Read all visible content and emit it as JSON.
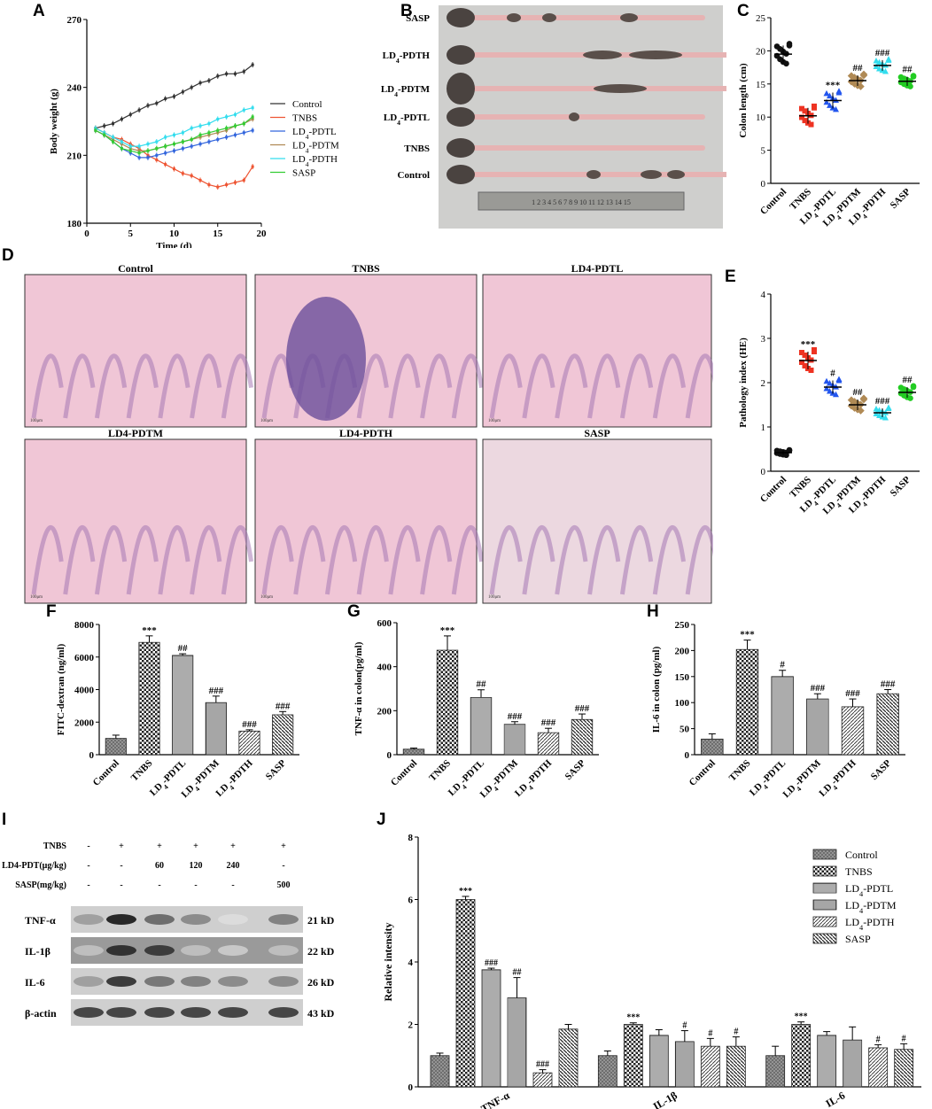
{
  "panels": {
    "A": "A",
    "B": "B",
    "C": "C",
    "D": "D",
    "E": "E",
    "F": "F",
    "G": "G",
    "H": "H",
    "I": "I",
    "J": "J"
  },
  "colors": {
    "Control": "#333333",
    "TNBS": "#ee5533",
    "LD4-PDTL": "#3366dd",
    "LD4-PDTM": "#b08a55",
    "LD4-PDTH": "#33ddee",
    "SASP": "#33cc33"
  },
  "photo": {
    "labels": [
      "SASP",
      "LD4-PDTH",
      "LD4-PDTM",
      "LD4-PDTL",
      "TNBS",
      "Control"
    ],
    "ruler": "1 2 3 4 5 6 7 8 9 10 11 12 13 14 15"
  },
  "histology": {
    "titles": [
      "Control",
      "TNBS",
      "LD4-PDTL",
      "LD4-PDTM",
      "LD4-PDTH",
      "SASP"
    ],
    "scale": "100μm"
  },
  "western": {
    "rows": [
      {
        "label": "TNBS",
        "vals": [
          "-",
          "+",
          "+",
          "+",
          "+",
          "+"
        ]
      },
      {
        "label": "LD4-PDT(μg/kg)",
        "vals": [
          "-",
          "-",
          "60",
          "120",
          "240",
          "-"
        ]
      },
      {
        "label": "SASP(mg/kg)",
        "vals": [
          "-",
          "-",
          "-",
          "-",
          "-",
          "500"
        ]
      }
    ],
    "bands": [
      {
        "name": "TNF-α",
        "kd": "21 kD",
        "intensity": [
          0.35,
          0.95,
          0.6,
          0.45,
          0.05,
          0.5
        ]
      },
      {
        "name": "IL-1β",
        "kd": "22 kD",
        "intensity": [
          0.2,
          0.9,
          0.85,
          0.2,
          0.15,
          0.2
        ]
      },
      {
        "name": "IL-6",
        "kd": "26 kD",
        "intensity": [
          0.35,
          0.85,
          0.55,
          0.5,
          0.45,
          0.45
        ]
      },
      {
        "name": "β-actin",
        "kd": "43 kD",
        "intensity": [
          0.8,
          0.8,
          0.8,
          0.8,
          0.8,
          0.8
        ]
      }
    ]
  },
  "chart_data": [
    {
      "panel": "A",
      "type": "line",
      "xlabel": "Time (d)",
      "ylabel": "Body weight (g)",
      "xlim": [
        0,
        20
      ],
      "ylim": [
        180,
        270
      ],
      "xticks": [
        0,
        5,
        10,
        15,
        20
      ],
      "yticks": [
        180,
        210,
        240,
        270
      ],
      "x": [
        1,
        2,
        3,
        4,
        5,
        6,
        7,
        8,
        9,
        10,
        11,
        12,
        13,
        14,
        15,
        16,
        17,
        18,
        19
      ],
      "series": [
        {
          "name": "Control",
          "values": [
            222,
            223,
            224,
            226,
            228,
            230,
            232,
            233,
            235,
            236,
            238,
            240,
            242,
            243,
            245,
            246,
            246,
            247,
            250
          ]
        },
        {
          "name": "TNBS",
          "values": [
            222,
            220,
            218,
            217,
            215,
            213,
            210,
            208,
            206,
            204,
            202,
            201,
            199,
            197,
            196,
            197,
            198,
            199,
            205
          ]
        },
        {
          "name": "LD4-PDTL",
          "values": [
            221,
            219,
            216,
            213,
            211,
            209,
            209,
            210,
            211,
            212,
            213,
            214,
            215,
            216,
            217,
            218,
            219,
            220,
            221
          ]
        },
        {
          "name": "LD4-PDTM",
          "values": [
            221,
            219,
            217,
            215,
            213,
            212,
            212,
            213,
            214,
            215,
            216,
            217,
            218,
            219,
            220,
            221,
            223,
            224,
            226
          ]
        },
        {
          "name": "LD4-PDTH",
          "values": [
            222,
            220,
            218,
            216,
            214,
            214,
            215,
            216,
            218,
            219,
            220,
            222,
            223,
            224,
            226,
            227,
            228,
            230,
            231
          ]
        },
        {
          "name": "SASP",
          "values": [
            221,
            219,
            216,
            213,
            212,
            211,
            212,
            213,
            214,
            215,
            216,
            217,
            219,
            220,
            221,
            222,
            223,
            224,
            227
          ]
        }
      ]
    },
    {
      "panel": "C",
      "type": "scatter",
      "ylabel": "Colon length (cm)",
      "ylim": [
        0,
        25
      ],
      "yticks": [
        0,
        5,
        10,
        15,
        20,
        25
      ],
      "categories": [
        "Control",
        "TNBS",
        "LD4-PDTL",
        "LD4-PDTM",
        "LD4-PDTH",
        "SASP"
      ],
      "means": [
        19.5,
        10.2,
        12.5,
        15.5,
        17.8,
        15.4
      ],
      "sd": [
        1.3,
        1.2,
        1.2,
        0.8,
        0.8,
        0.7
      ],
      "annotations": [
        "",
        "",
        "***",
        "##",
        "###",
        "##"
      ]
    },
    {
      "panel": "E",
      "type": "scatter",
      "ylabel": "Pathology index (HE)",
      "ylim": [
        0,
        4
      ],
      "yticks": [
        0,
        1,
        2,
        3,
        4
      ],
      "categories": [
        "Control",
        "TNBS",
        "LD4-PDTL",
        "LD4-PDTM",
        "LD4-PDTH",
        "SASP"
      ],
      "means": [
        0.42,
        2.5,
        1.9,
        1.5,
        1.32,
        1.78
      ],
      "sd": [
        0.05,
        0.2,
        0.15,
        0.12,
        0.1,
        0.12
      ],
      "annotations": [
        "",
        "***",
        "#",
        "##",
        "###",
        "##"
      ]
    },
    {
      "panel": "F",
      "type": "bar",
      "ylabel": "FITC-dextran (ng/ml)",
      "ylim": [
        0,
        8000
      ],
      "yticks": [
        0,
        2000,
        4000,
        6000,
        8000
      ],
      "categories": [
        "Control",
        "TNBS",
        "LD4-PDTL",
        "LD4-PDTM",
        "LD4-PDTH",
        "SASP"
      ],
      "values": [
        1000,
        6900,
        6100,
        3200,
        1450,
        2450
      ],
      "errors": [
        200,
        400,
        100,
        400,
        80,
        200
      ],
      "annotations": [
        "",
        "***",
        "##",
        "###",
        "###",
        "###"
      ]
    },
    {
      "panel": "G",
      "type": "bar",
      "ylabel": "TNF-α in colon(pg/ml)",
      "ylim": [
        0,
        600
      ],
      "yticks": [
        0,
        200,
        400,
        600
      ],
      "categories": [
        "Control",
        "TNBS",
        "LD4-PDTL",
        "LD4-PDTM",
        "LD4-PDTH",
        "SASP"
      ],
      "values": [
        25,
        475,
        260,
        138,
        100,
        160
      ],
      "errors": [
        5,
        65,
        35,
        12,
        20,
        25
      ],
      "annotations": [
        "",
        "***",
        "##",
        "###",
        "###",
        "###"
      ]
    },
    {
      "panel": "H",
      "type": "bar",
      "ylabel": "IL-6 in colon  (pg/ml)",
      "ylim": [
        0,
        250
      ],
      "yticks": [
        0,
        50,
        100,
        150,
        200,
        250
      ],
      "categories": [
        "Control",
        "TNBS",
        "LD4-PDTL",
        "LD4-PDTM",
        "LD4-PDTH",
        "SASP"
      ],
      "values": [
        30,
        202,
        150,
        107,
        92,
        117
      ],
      "errors": [
        10,
        18,
        12,
        10,
        15,
        8
      ],
      "annotations": [
        "",
        "***",
        "#",
        "###",
        "###",
        "###"
      ]
    },
    {
      "panel": "J",
      "type": "bar",
      "ylabel": "Relative intensity",
      "ylim": [
        0,
        8
      ],
      "yticks": [
        0,
        2,
        4,
        6,
        8
      ],
      "categories": [
        "TNF-α",
        "IL-1β",
        "IL-6"
      ],
      "series": [
        {
          "name": "Control",
          "values": [
            1.0,
            1.0,
            1.0
          ],
          "errors": [
            0.08,
            0.15,
            0.3
          ],
          "annotations": [
            "",
            "",
            ""
          ]
        },
        {
          "name": "TNBS",
          "values": [
            6.0,
            2.0,
            2.0
          ],
          "errors": [
            0.1,
            0.05,
            0.08
          ],
          "annotations": [
            "***",
            "***",
            "***"
          ]
        },
        {
          "name": "LD4-PDTL",
          "values": [
            3.75,
            1.65,
            1.65
          ],
          "errors": [
            0.05,
            0.18,
            0.12
          ],
          "annotations": [
            "###",
            "",
            ""
          ]
        },
        {
          "name": "LD4-PDTM",
          "values": [
            2.85,
            1.45,
            1.5
          ],
          "errors": [
            0.65,
            0.35,
            0.42
          ],
          "annotations": [
            "##",
            "#",
            ""
          ]
        },
        {
          "name": "LD4-PDTH",
          "values": [
            0.45,
            1.3,
            1.25
          ],
          "errors": [
            0.1,
            0.25,
            0.1
          ],
          "annotations": [
            "###",
            "#",
            "#"
          ]
        },
        {
          "name": "SASP",
          "values": [
            1.85,
            1.3,
            1.2
          ],
          "errors": [
            0.15,
            0.3,
            0.18
          ],
          "annotations": [
            "",
            "#",
            "#"
          ]
        }
      ]
    }
  ]
}
